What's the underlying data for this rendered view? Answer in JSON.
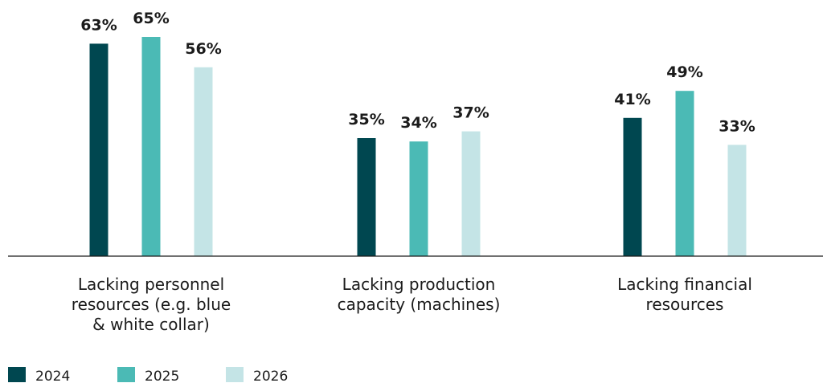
{
  "chart_data": {
    "type": "bar",
    "categories": [
      [
        "Lacking personnel",
        "resources (e.g. blue",
        "& white collar)"
      ],
      [
        "Lacking production",
        "capacity (machines)"
      ],
      [
        "Lacking financial",
        "resources"
      ]
    ],
    "series": [
      {
        "name": "2024",
        "color": "#004750",
        "values": [
          63,
          35,
          41
        ]
      },
      {
        "name": "2025",
        "color": "#4bbab5",
        "values": [
          65,
          34,
          49
        ]
      },
      {
        "name": "2026",
        "color": "#c4e4e6",
        "values": [
          56,
          37,
          33
        ]
      }
    ],
    "value_suffix": "%",
    "ylim": [
      0,
      65
    ],
    "grid": false,
    "legend_position": "bottom-left"
  }
}
